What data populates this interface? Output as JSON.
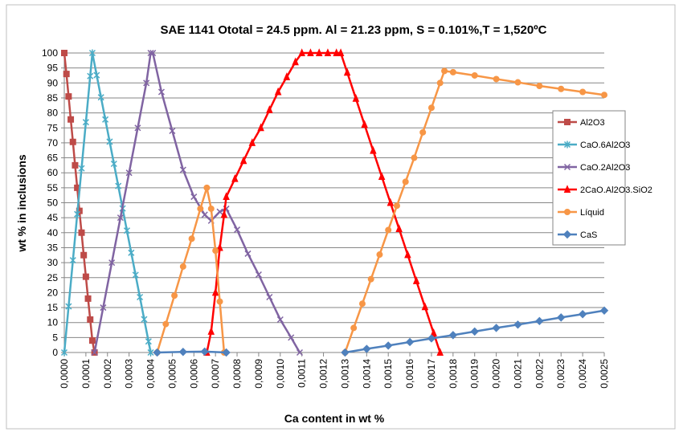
{
  "chart_data": {
    "type": "line",
    "title": "SAE 1141 Ototal = 24.5 ppm. Al = 21.23 ppm, S = 0.101%,T = 1,520ºC",
    "x_label": "Ca content in wt %",
    "y_label": "wt % in inclusions",
    "xlim": [
      0,
      0.0025
    ],
    "ylim": [
      0,
      100
    ],
    "yticks": [
      0,
      5,
      10,
      15,
      20,
      25,
      30,
      35,
      40,
      45,
      50,
      55,
      60,
      65,
      70,
      75,
      80,
      85,
      90,
      95,
      100
    ],
    "xticks": [
      {
        "value": 0,
        "label": "0,0000"
      },
      {
        "value": 0.0001,
        "label": "0,0001"
      },
      {
        "value": 0.0002,
        "label": "0,0002"
      },
      {
        "value": 0.0003,
        "label": "0,0003"
      },
      {
        "value": 0.0004,
        "label": "0,0004"
      },
      {
        "value": 0.0005,
        "label": "0,0005"
      },
      {
        "value": 0.0006,
        "label": "0,0006"
      },
      {
        "value": 0.0007,
        "label": "0,0007"
      },
      {
        "value": 0.0008,
        "label": "0,0008"
      },
      {
        "value": 0.0009,
        "label": "0,0009"
      },
      {
        "value": 0.001,
        "label": "0,0010"
      },
      {
        "value": 0.0011,
        "label": "0,0011"
      },
      {
        "value": 0.0012,
        "label": "0,0012"
      },
      {
        "value": 0.0013,
        "label": "0,0013"
      },
      {
        "value": 0.0014,
        "label": "0,0014"
      },
      {
        "value": 0.0015,
        "label": "0,0015"
      },
      {
        "value": 0.0016,
        "label": "0,0016"
      },
      {
        "value": 0.0017,
        "label": "0,0017"
      },
      {
        "value": 0.0018,
        "label": "0,0018"
      },
      {
        "value": 0.0019,
        "label": "0,0019"
      },
      {
        "value": 0.002,
        "label": "0,0020"
      },
      {
        "value": 0.0021,
        "label": "0,0021"
      },
      {
        "value": 0.0022,
        "label": "0,0022"
      },
      {
        "value": 0.0023,
        "label": "0,0023"
      },
      {
        "value": 0.0024,
        "label": "0,0024"
      },
      {
        "value": 0.0025,
        "label": "0,0025"
      }
    ],
    "grid": true,
    "legend": "right",
    "series": [
      {
        "name": "Al2O3",
        "color": "#be4b48",
        "marker": "square",
        "x": [
          0,
          1e-05,
          2e-05,
          3e-05,
          4e-05,
          5e-05,
          6e-05,
          7e-05,
          8e-05,
          9e-05,
          0.0001,
          0.00011,
          0.00012,
          0.00013,
          0.00014
        ],
        "values": [
          100,
          93,
          85.5,
          77.8,
          70.3,
          62.5,
          55,
          47.3,
          40,
          32.5,
          25.3,
          18,
          11,
          4,
          0
        ]
      },
      {
        "name": "CaO.6Al2O3",
        "color": "#4bacc6",
        "marker": "star",
        "x": [
          0,
          2e-05,
          4e-05,
          6e-05,
          8e-05,
          0.0001,
          0.00012,
          0.00013,
          0.00015,
          0.00017,
          0.00019,
          0.00021,
          0.00023,
          0.00025,
          0.00027,
          0.00029,
          0.00031,
          0.00033,
          0.00035,
          0.00037,
          0.00039,
          0.0004
        ],
        "values": [
          0,
          15.4,
          30.8,
          46.2,
          61.5,
          76.9,
          92.3,
          100,
          92.6,
          85.2,
          77.8,
          70.4,
          63,
          55.6,
          48.1,
          40.7,
          33.3,
          25.9,
          18.5,
          11.1,
          3.7,
          0
        ]
      },
      {
        "name": "CaO.2Al2O3",
        "color": "#8064a2",
        "marker": "x",
        "x": [
          0.00014,
          0.00018,
          0.00022,
          0.00026,
          0.0003,
          0.00034,
          0.00038,
          0.0004,
          0.00041,
          0.00045,
          0.0005,
          0.00055,
          0.0006,
          0.00065,
          0.00068,
          0.00072,
          0.00075,
          0.0008,
          0.00085,
          0.0009,
          0.00095,
          0.001,
          0.00105,
          0.00109
        ],
        "values": [
          0,
          15,
          30,
          45,
          60,
          75,
          90,
          100,
          100,
          87,
          74,
          61,
          52,
          46,
          44,
          47,
          48,
          41,
          33,
          26,
          18.5,
          11,
          5,
          0
        ]
      },
      {
        "name": "2CaO.Al2O3.SiO2",
        "color": "#ff0000",
        "marker": "triangle",
        "x": [
          0.00066,
          0.00068,
          0.0007,
          0.00072,
          0.00074,
          0.00075,
          0.00079,
          0.00083,
          0.00087,
          0.00091,
          0.00095,
          0.00099,
          0.00103,
          0.00107,
          0.0011,
          0.00114,
          0.00118,
          0.00122,
          0.00126,
          0.00128,
          0.00131,
          0.00135,
          0.00139,
          0.00143,
          0.00147,
          0.00151,
          0.00155,
          0.00159,
          0.00163,
          0.00167,
          0.00171,
          0.00174
        ],
        "values": [
          0,
          7,
          20,
          35,
          46,
          52,
          58,
          64,
          70,
          75,
          81,
          87,
          92,
          97,
          100,
          100,
          100,
          100,
          100,
          100,
          93.5,
          84.8,
          76.1,
          67.4,
          58.7,
          50,
          41.3,
          32.6,
          23.9,
          15.2,
          6.5,
          0
        ]
      },
      {
        "name": "Líquid",
        "color": "#f79646",
        "marker": "circle",
        "x": [
          0.00043,
          0.00047,
          0.00051,
          0.00055,
          0.00059,
          0.00063,
          0.00066,
          0.00068,
          0.0007,
          0.00072,
          0.00074,
          0.001,
          0.0013,
          0.00134,
          0.00138,
          0.00142,
          0.00146,
          0.0015,
          0.00154,
          0.00158,
          0.00162,
          0.00166,
          0.0017,
          0.00174,
          0.00176,
          0.0018,
          0.0019,
          0.002,
          0.0021,
          0.0022,
          0.0023,
          0.0024,
          0.0025
        ],
        "values": [
          0,
          9.5,
          19,
          28.7,
          38,
          48,
          55,
          48,
          34,
          17,
          0,
          null,
          0,
          8.2,
          16.3,
          24.5,
          32.7,
          40.9,
          49,
          57,
          65,
          73.5,
          81.7,
          90,
          94,
          93.6,
          92.5,
          91.3,
          90.2,
          89,
          88,
          87,
          86
        ]
      },
      {
        "name": "CaS",
        "color": "#4f81bd",
        "marker": "diamond",
        "x": [
          0.00043,
          0.00055,
          0.00065,
          0.00075,
          0.001,
          0.0013,
          0.0014,
          0.0015,
          0.0016,
          0.0017,
          0.0018,
          0.0019,
          0.002,
          0.0021,
          0.0022,
          0.0023,
          0.0024,
          0.0025
        ],
        "values": [
          0,
          0.2,
          0.3,
          0,
          null,
          0,
          1.2,
          2.3,
          3.5,
          4.7,
          5.8,
          7,
          8.2,
          9.3,
          10.5,
          11.7,
          12.8,
          14
        ]
      }
    ]
  }
}
